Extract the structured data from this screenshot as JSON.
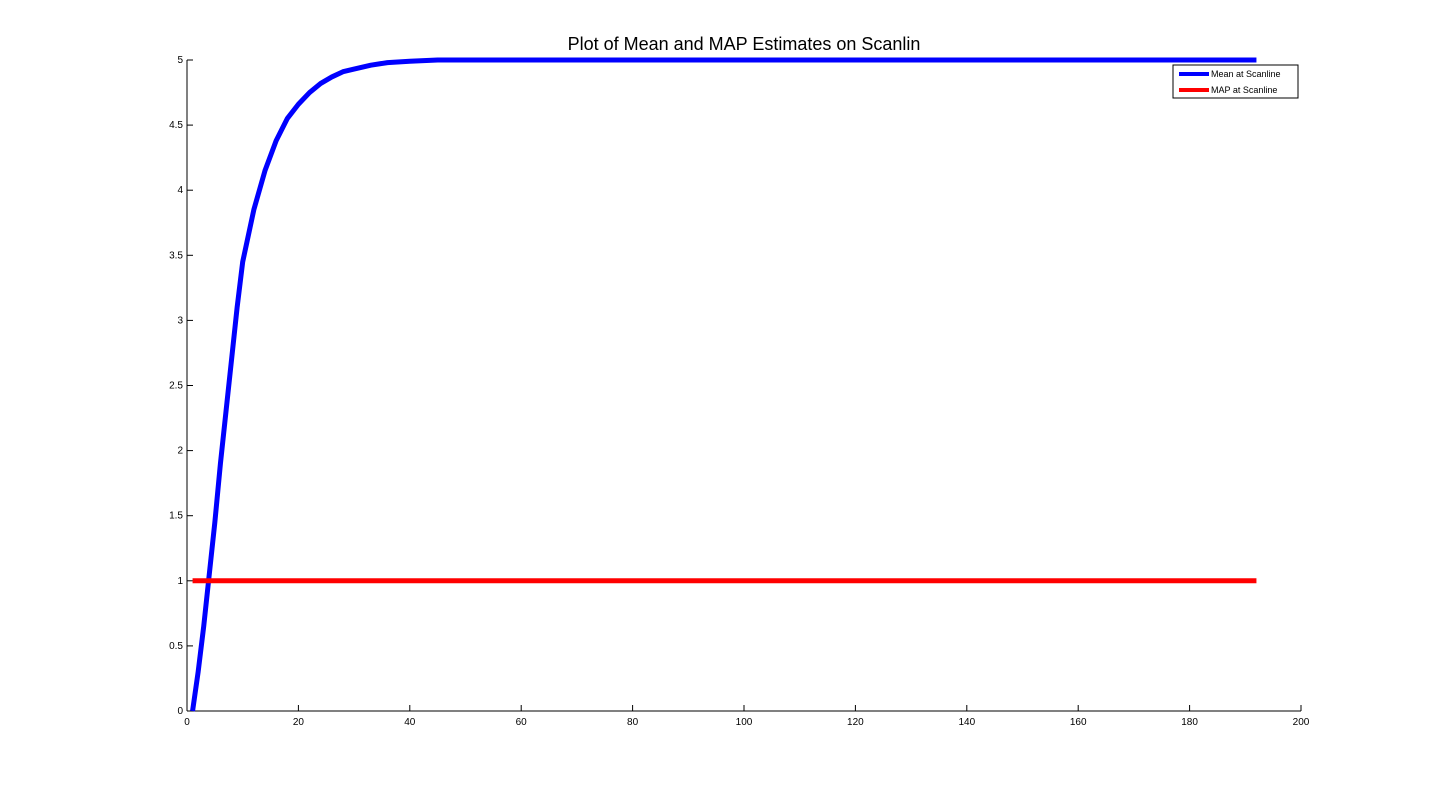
{
  "chart_data": {
    "type": "line",
    "title": "Plot of Mean and MAP Estimates on Scanlin",
    "xlabel": "",
    "ylabel": "",
    "xlim": [
      0,
      200
    ],
    "ylim": [
      0,
      5
    ],
    "x_ticks": [
      0,
      20,
      40,
      60,
      80,
      100,
      120,
      140,
      160,
      180,
      200
    ],
    "y_ticks": [
      0,
      0.5,
      1,
      1.5,
      2,
      2.5,
      3,
      3.5,
      4,
      4.5,
      5
    ],
    "x_tick_labels": [
      "0",
      "20",
      "40",
      "60",
      "80",
      "100",
      "120",
      "140",
      "160",
      "180",
      "200"
    ],
    "y_tick_labels": [
      "0",
      "0.5",
      "1",
      "1.5",
      "2",
      "2.5",
      "3",
      "3.5",
      "4",
      "4.5",
      "5"
    ],
    "grid": false,
    "legend_position": "top-right",
    "series": [
      {
        "name": "Mean at Scanline",
        "color": "#0000ff",
        "x": [
          1,
          2,
          3,
          4,
          5,
          6,
          7,
          8,
          9,
          10,
          12,
          14,
          16,
          18,
          20,
          22,
          24,
          26,
          28,
          30,
          33,
          36,
          40,
          45,
          50,
          60,
          80,
          100,
          120,
          140,
          160,
          180,
          192
        ],
        "y": [
          0.0,
          0.3,
          0.65,
          1.05,
          1.45,
          1.9,
          2.3,
          2.7,
          3.1,
          3.45,
          3.85,
          4.15,
          4.38,
          4.55,
          4.66,
          4.75,
          4.82,
          4.87,
          4.91,
          4.93,
          4.96,
          4.98,
          4.99,
          5.0,
          5.0,
          5.0,
          5.0,
          5.0,
          5.0,
          5.0,
          5.0,
          5.0,
          5.0
        ]
      },
      {
        "name": "MAP at Scanline",
        "color": "#ff0000",
        "x": [
          1,
          192
        ],
        "y": [
          1.0,
          1.0
        ]
      }
    ]
  }
}
